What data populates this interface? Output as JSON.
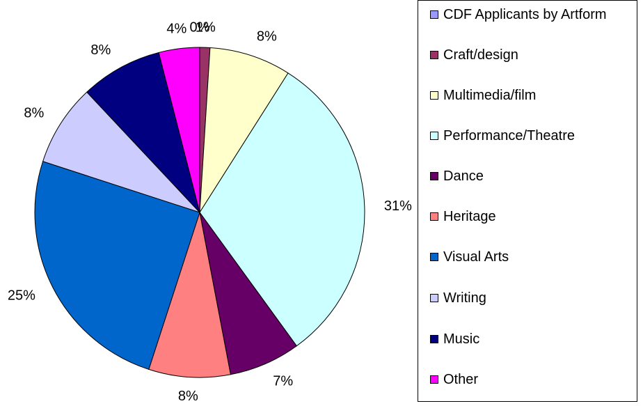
{
  "chart_data": {
    "type": "pie",
    "categories": [
      "CDF Applicants by Artform",
      "Craft/design",
      "Multimedia/film",
      "Performance/Theatre",
      "Dance",
      "Heritage",
      "Visual Arts",
      "Writing",
      "Music",
      "Other"
    ],
    "values": [
      0,
      1,
      8,
      31,
      7,
      8,
      25,
      8,
      8,
      4
    ],
    "value_labels": [
      "0%",
      "1%",
      "8%",
      "31%",
      "7%",
      "8%",
      "25%",
      "8%",
      "8%",
      "4%"
    ],
    "colors": [
      "#9999ff",
      "#993366",
      "#ffffcc",
      "#ccffff",
      "#660066",
      "#ff8080",
      "#0066cc",
      "#ccccff",
      "#000080",
      "#ff00ff"
    ],
    "legend": "right"
  }
}
